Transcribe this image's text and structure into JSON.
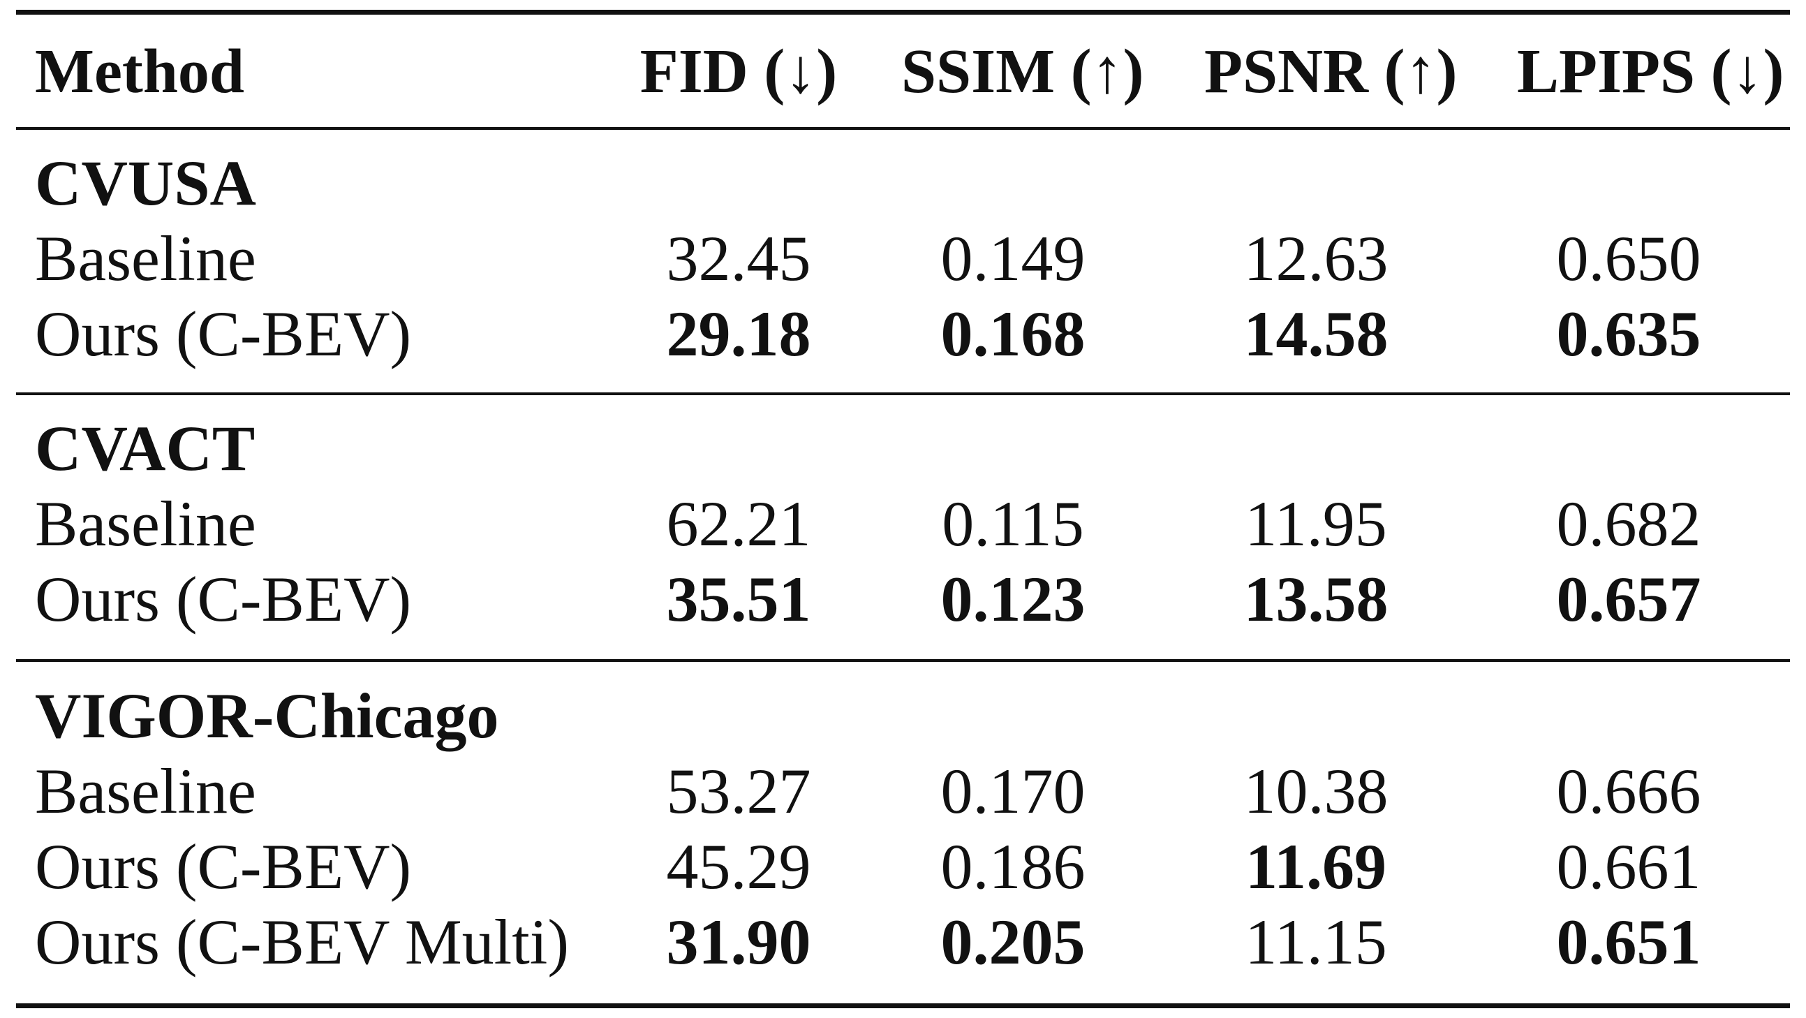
{
  "columns": {
    "method": "Method",
    "fid": "FID (↓)",
    "ssim": "SSIM (↑)",
    "psnr": "PSNR (↑)",
    "lpips": "LPIPS (↓)"
  },
  "groups": [
    {
      "name": "CVUSA",
      "rows": [
        {
          "method": "Baseline",
          "fid": "32.45",
          "ssim": "0.149",
          "psnr": "12.63",
          "lpips": "0.650",
          "bold": []
        },
        {
          "method": "Ours (C-BEV)",
          "fid": "29.18",
          "ssim": "0.168",
          "psnr": "14.58",
          "lpips": "0.635",
          "bold": [
            "fid",
            "ssim",
            "psnr",
            "lpips"
          ]
        }
      ]
    },
    {
      "name": "CVACT",
      "rows": [
        {
          "method": "Baseline",
          "fid": "62.21",
          "ssim": "0.115",
          "psnr": "11.95",
          "lpips": "0.682",
          "bold": []
        },
        {
          "method": "Ours (C-BEV)",
          "fid": "35.51",
          "ssim": "0.123",
          "psnr": "13.58",
          "lpips": "0.657",
          "bold": [
            "fid",
            "ssim",
            "psnr",
            "lpips"
          ]
        }
      ]
    },
    {
      "name": "VIGOR-Chicago",
      "rows": [
        {
          "method": "Baseline",
          "fid": "53.27",
          "ssim": "0.170",
          "psnr": "10.38",
          "lpips": "0.666",
          "bold": []
        },
        {
          "method": "Ours (C-BEV)",
          "fid": "45.29",
          "ssim": "0.186",
          "psnr": "11.69",
          "lpips": "0.661",
          "bold": [
            "psnr"
          ]
        },
        {
          "method": "Ours (C-BEV Multi)",
          "fid": "31.90",
          "ssim": "0.205",
          "psnr": "11.15",
          "lpips": "0.651",
          "bold": [
            "fid",
            "ssim",
            "lpips"
          ]
        }
      ]
    }
  ]
}
